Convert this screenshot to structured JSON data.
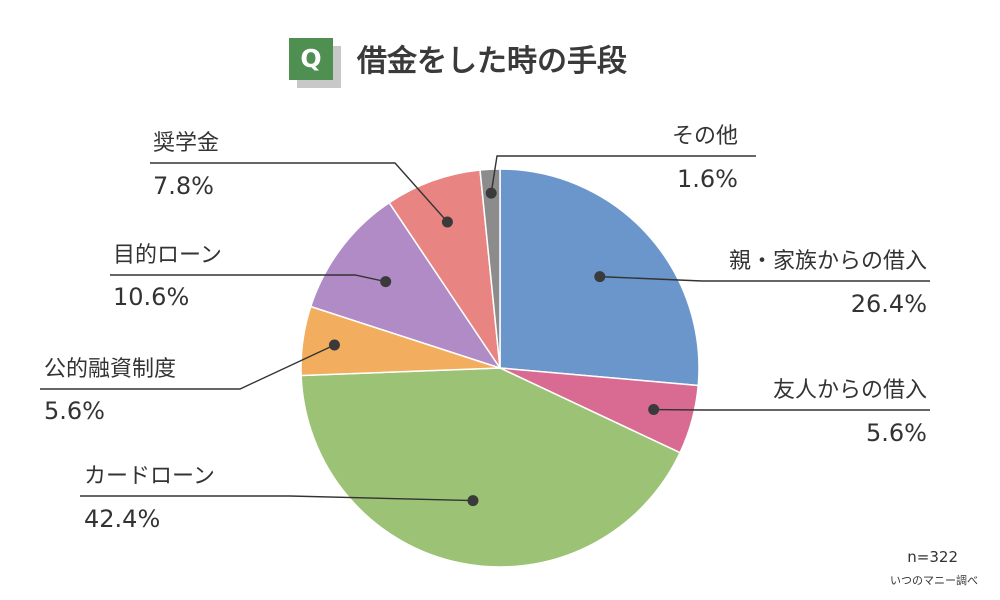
{
  "header": {
    "badge": "Q",
    "title": "借金をした時の手段"
  },
  "footer": {
    "sample_size": "n=322",
    "source": "いつのマニー調べ"
  },
  "chart_data": {
    "type": "pie",
    "title": "借金をした時の手段",
    "start_angle": "12 o'clock",
    "direction": "clockwise",
    "slices": [
      {
        "label": "親・家族からの借入",
        "value": 26.4,
        "value_label": "26.4%",
        "color": "#6a96cc"
      },
      {
        "label": "友人からの借入",
        "value": 5.6,
        "value_label": "5.6%",
        "color": "#d96a92"
      },
      {
        "label": "カードローン",
        "value": 42.4,
        "value_label": "42.4%",
        "color": "#9cc276"
      },
      {
        "label": "公的融資制度",
        "value": 5.6,
        "value_label": "5.6%",
        "color": "#f2ad5e"
      },
      {
        "label": "目的ローン",
        "value": 10.6,
        "value_label": "10.6%",
        "color": "#b08bc6"
      },
      {
        "label": "奨学金",
        "value": 7.8,
        "value_label": "7.8%",
        "color": "#e88481"
      },
      {
        "label": "その他",
        "value": 1.6,
        "value_label": "1.6%",
        "color": "#8c8c8c"
      }
    ]
  }
}
